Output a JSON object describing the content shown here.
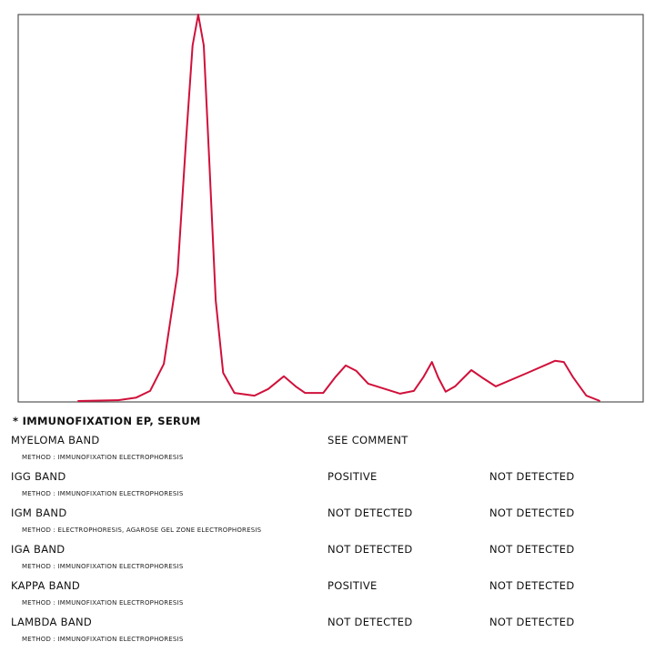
{
  "chart_data": {
    "type": "line",
    "x": [
      9.5,
      16.0,
      18.9,
      21.1,
      23.3,
      25.5,
      26.9,
      27.9,
      28.8,
      29.7,
      30.6,
      31.6,
      32.8,
      34.6,
      37.8,
      40.0,
      42.5,
      44.4,
      45.9,
      48.8,
      50.7,
      52.4,
      54.1,
      56.0,
      61.1,
      63.3,
      64.8,
      66.2,
      67.2,
      68.4,
      69.9,
      72.5,
      74.2,
      76.4,
      81.5,
      85.9,
      87.3,
      88.8,
      90.9,
      93.1
    ],
    "values": [
      0,
      0.2,
      0.9,
      2.6,
      9.6,
      33.2,
      68.5,
      92,
      100,
      92,
      61.4,
      26.1,
      7.3,
      2.1,
      1.4,
      3.1,
      6.4,
      3.8,
      2.1,
      2.1,
      6.1,
      9.2,
      7.8,
      4.5,
      1.9,
      2.6,
      6.1,
      10.1,
      6.1,
      2.4,
      3.8,
      8.0,
      6.1,
      3.8,
      7.3,
      10.4,
      10.1,
      6.1,
      1.4,
      0
    ],
    "color": "#d0103a",
    "xlim": [
      0,
      100
    ],
    "ylim": [
      0,
      100
    ]
  },
  "report": {
    "title": "* IMMUNOFIXATION EP, SERUM",
    "rows": [
      {
        "name": "MYELOMA BAND",
        "result": "SEE COMMENT",
        "method": "METHOD : IMMUNOFIXATION ELECTROPHORESIS"
      },
      {
        "name": "IGG BAND",
        "result": "POSITIVE",
        "reference": "NOT DETECTED",
        "method": "METHOD : IMMUNOFIXATION ELECTROPHORESIS"
      },
      {
        "name": "IGM BAND",
        "result": "NOT DETECTED",
        "reference": "NOT DETECTED",
        "method": "METHOD : ELECTROPHORESIS, AGAROSE GEL ZONE ELECTROPHORESIS"
      },
      {
        "name": "IGA BAND",
        "result": "NOT DETECTED",
        "reference": "NOT DETECTED",
        "method": "METHOD : IMMUNOFIXATION ELECTROPHORESIS"
      },
      {
        "name": "KAPPA BAND",
        "result": "POSITIVE",
        "reference": "NOT DETECTED",
        "method": "METHOD : IMMUNOFIXATION ELECTROPHORESIS"
      },
      {
        "name": "LAMBDA BAND",
        "result": "NOT DETECTED",
        "reference": "NOT DETECTED",
        "method": "METHOD : IMMUNOFIXATION ELECTROPHORESIS"
      }
    ]
  }
}
